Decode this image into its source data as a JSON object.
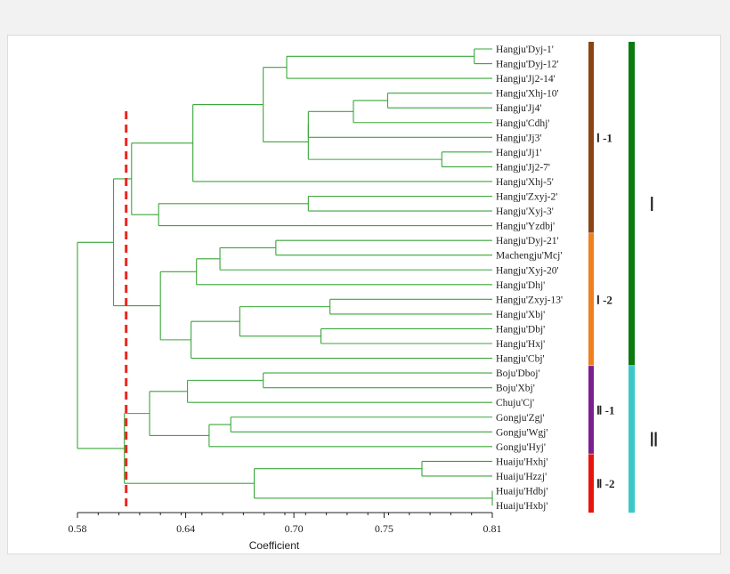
{
  "axis": {
    "label": "Coefficient",
    "min": 0.58,
    "max": 0.81,
    "ticks": [
      "0.58",
      "0.64",
      "0.70",
      "0.75",
      "0.81"
    ],
    "tick_values": [
      0.58,
      0.64,
      0.7,
      0.75,
      0.81
    ]
  },
  "cut_line": {
    "value": 0.607,
    "color": "#e8271f"
  },
  "line_color": "#3aa63a",
  "leaves": [
    "Hangju'Dyj-1'",
    "Hangju'Dyj-12'",
    "Hangju'Jj2-14'",
    "Hangju'Xhj-10'",
    "Hangju'Jj4'",
    "Hangju'Cdhj'",
    "Hangju'Jj3'",
    "Hangju'Jj1'",
    "Hangju'Jj2-7'",
    "Hangju'Xhj-5'",
    "Hangju'Zxyj-2'",
    "Hangju'Xyj-3'",
    "Hangju'Yzdbj'",
    "Hangju'Dyj-21'",
    "Machengju'Mcj'",
    "Hangju'Xyj-20'",
    "Hangju'Dhj'",
    "Hangju'Zxyj-13'",
    "Hangju'Xbj'",
    "Hangju'Dbj'",
    "Hangju'Hxj'",
    "Hangju'Cbj'",
    "Boju'Dboj'",
    "Boju'Xbj'",
    "Chuju'Cj'",
    "Gongju'Zgj'",
    "Gongju'Wgj'",
    "Gongju'Hyj'",
    "Huaiju'Hxhj'",
    "Huaiju'Hzzj'",
    "Huaiju'Hdbj'",
    "Huaiju'Hxbj'"
  ],
  "subgroups": [
    {
      "label": "Ⅰ -1",
      "from": 0,
      "to": 12,
      "color": "#8b4513"
    },
    {
      "label": "Ⅰ -2",
      "from": 13,
      "to": 21,
      "color": "#f07f1e"
    },
    {
      "label": "Ⅱ -1",
      "from": 22,
      "to": 27,
      "color": "#7b1f8f"
    },
    {
      "label": "Ⅱ -2",
      "from": 28,
      "to": 31,
      "color": "#e8150f"
    }
  ],
  "groups": [
    {
      "label": "Ⅰ",
      "from": 0,
      "to": 21,
      "color": "#0b7a10"
    },
    {
      "label": "Ⅱ",
      "from": 22,
      "to": 31,
      "color": "#3cc8c8"
    }
  ],
  "merges": [
    [
      0,
      1,
      0.8
    ],
    [
      3,
      4,
      0.752
    ],
    [
      7,
      8,
      0.782
    ],
    [
      10,
      11,
      0.708
    ],
    [
      13,
      14,
      0.69
    ],
    [
      17,
      18,
      0.72
    ],
    [
      19,
      20,
      0.715
    ],
    [
      22,
      23,
      0.683
    ],
    [
      25,
      26,
      0.665
    ],
    [
      28,
      29,
      0.771
    ],
    [
      30,
      31,
      0.81
    ],
    [
      "n1",
      2,
      0.696
    ],
    [
      "n2",
      5,
      0.733
    ],
    [
      "n3",
      6,
      0.708
    ],
    [
      "n4",
      "n12"
    ],
    [
      1,
      1,
      0
    ]
  ]
}
